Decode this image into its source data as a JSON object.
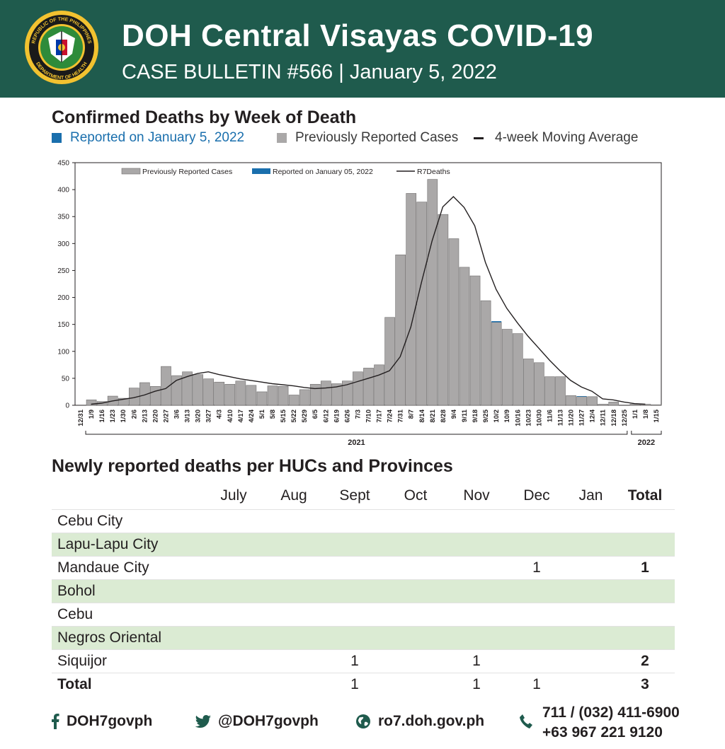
{
  "header": {
    "title": "DOH Central Visayas COVID-19",
    "subtitle": "CASE BULLETIN #566 | January 5, 2022",
    "logo_top_text": "REPUBLIC OF THE PHILIPPINES",
    "logo_bottom_text": "DEPARTMENT OF HEALTH"
  },
  "colors": {
    "header_bg": "#1f5b4d",
    "reported_blue": "#1a6fad",
    "bar_gray": "#aaa8a8",
    "table_alt_row": "#dbebd3"
  },
  "chart_section": {
    "title": "Confirmed Deaths by Week of Death",
    "legend": {
      "reported": "Reported on January 5, 2022",
      "previous": "Previously Reported Cases",
      "average": "4-week Moving Average"
    }
  },
  "chart_data": {
    "type": "bar",
    "inner_legend": [
      "Previously Reported Cases",
      "Reported on January 05, 2022",
      "R7Deaths"
    ],
    "categories": [
      "12/31",
      "1/9",
      "1/16",
      "1/23",
      "1/30",
      "2/6",
      "2/13",
      "2/20",
      "2/27",
      "3/6",
      "3/13",
      "3/20",
      "3/27",
      "4/3",
      "4/10",
      "4/17",
      "4/24",
      "5/1",
      "5/8",
      "5/15",
      "5/22",
      "5/29",
      "6/5",
      "6/12",
      "6/19",
      "6/26",
      "7/3",
      "7/10",
      "7/17",
      "7/24",
      "7/31",
      "8/7",
      "8/14",
      "8/21",
      "8/28",
      "9/4",
      "9/11",
      "9/18",
      "9/25",
      "10/2",
      "10/9",
      "10/16",
      "10/23",
      "10/30",
      "11/6",
      "11/13",
      "11/20",
      "11/27",
      "12/4",
      "12/11",
      "12/18",
      "12/25",
      "1/1",
      "1/8",
      "1/15"
    ],
    "year_labels": [
      "2021",
      "2022"
    ],
    "ylim": [
      0,
      450
    ],
    "yticks": [
      0,
      50,
      100,
      150,
      200,
      250,
      300,
      350,
      400,
      450
    ],
    "series": [
      {
        "name": "Previously Reported Cases",
        "values": [
          0,
          10,
          7,
          17,
          13,
          32,
          42,
          35,
          72,
          55,
          62,
          57,
          49,
          43,
          39,
          45,
          37,
          25,
          36,
          35,
          19,
          29,
          39,
          45,
          40,
          45,
          62,
          69,
          75,
          163,
          279,
          393,
          377,
          419,
          354,
          309,
          256,
          240,
          194,
          154,
          141,
          133,
          86,
          79,
          53,
          53,
          18,
          16,
          16,
          2,
          6,
          0,
          2,
          2,
          1
        ]
      },
      {
        "name": "Reported on January 05, 2022",
        "values": [
          0,
          0,
          0,
          0,
          0,
          0,
          0,
          0,
          0,
          0,
          0,
          0,
          0,
          0,
          0,
          0,
          0,
          0,
          0,
          0,
          0,
          0,
          0,
          0,
          0,
          0,
          0,
          0,
          0,
          0,
          0,
          0,
          0,
          0,
          0,
          0,
          0,
          0,
          0,
          2,
          0,
          0,
          0,
          0,
          0,
          0,
          0,
          1,
          0,
          0,
          0,
          0,
          0,
          0,
          0
        ]
      },
      {
        "name": "R7Deaths",
        "values": [
          null,
          2,
          4,
          8,
          11,
          14,
          19,
          26,
          31,
          46,
          53,
          59,
          62,
          57,
          53,
          49,
          46,
          43,
          40,
          38,
          36,
          33,
          31,
          32,
          34,
          38,
          44,
          50,
          56,
          64,
          90,
          145,
          228,
          305,
          368,
          387,
          367,
          333,
          265,
          215,
          180,
          153,
          128,
          106,
          84,
          64,
          46,
          34,
          26,
          12,
          10,
          6,
          3,
          2,
          null
        ]
      }
    ]
  },
  "table_section": {
    "title": "Newly reported deaths per HUCs and Provinces",
    "columns": [
      "July",
      "Aug",
      "Sept",
      "Oct",
      "Nov",
      "Dec",
      "Jan",
      "Total"
    ],
    "rows": [
      {
        "name": "Cebu City",
        "cells": [
          "",
          "",
          "",
          "",
          "",
          "",
          "",
          ""
        ]
      },
      {
        "name": "Lapu-Lapu City",
        "cells": [
          "",
          "",
          "",
          "",
          "",
          "",
          "",
          ""
        ]
      },
      {
        "name": "Mandaue City",
        "cells": [
          "",
          "",
          "",
          "",
          "",
          "1",
          "",
          "1"
        ]
      },
      {
        "name": "Bohol",
        "cells": [
          "",
          "",
          "",
          "",
          "",
          "",
          "",
          ""
        ]
      },
      {
        "name": "Cebu",
        "cells": [
          "",
          "",
          "",
          "",
          "",
          "",
          "",
          ""
        ]
      },
      {
        "name": "Negros Oriental",
        "cells": [
          "",
          "",
          "",
          "",
          "",
          "",
          "",
          ""
        ]
      },
      {
        "name": "Siquijor",
        "cells": [
          "",
          "",
          "1",
          "",
          "1",
          "",
          "",
          "2"
        ]
      }
    ],
    "total_row": {
      "name": "Total",
      "cells": [
        "",
        "",
        "1",
        "",
        "1",
        "1",
        "",
        "3"
      ]
    }
  },
  "footer": {
    "facebook": "DOH7govph",
    "twitter": "@DOH7govph",
    "website": "ro7.doh.gov.ph",
    "phone_1": "711 / (032) 411-6900",
    "phone_2": "+63 967 221 9120"
  }
}
